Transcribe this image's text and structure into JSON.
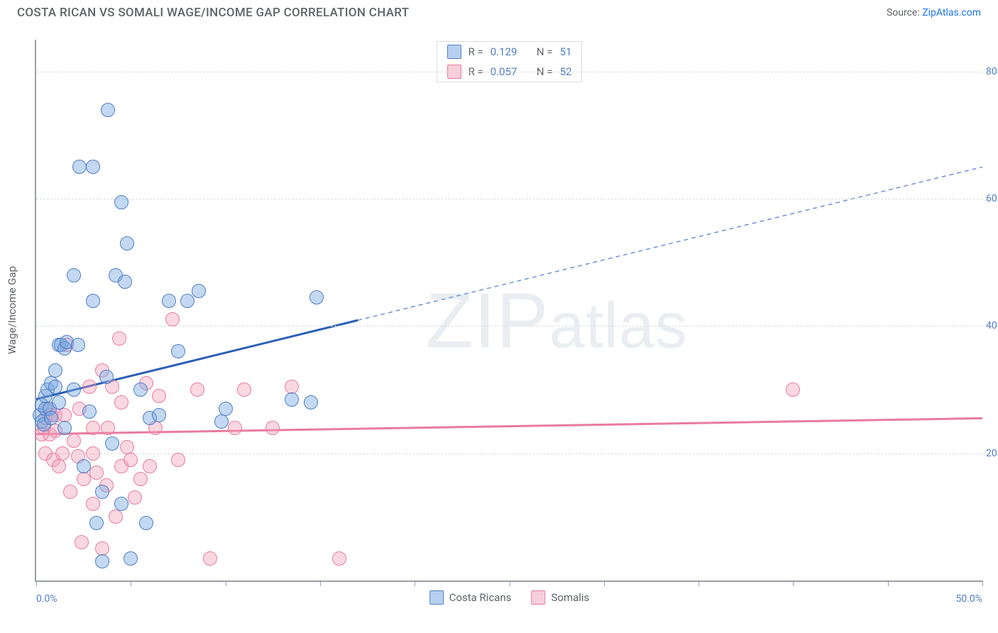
{
  "header": {
    "title": "COSTA RICAN VS SOMALI WAGE/INCOME GAP CORRELATION CHART",
    "source_prefix": "Source: ",
    "source_link": "ZipAtlas.com"
  },
  "watermark": {
    "zip": "ZIP",
    "atlas": "atlas"
  },
  "chart": {
    "type": "scatter",
    "y_axis_title": "Wage/Income Gap",
    "background_color": "#ffffff",
    "axis_color": "#9aa0a6",
    "grid_color": "#dadce0",
    "tick_label_color": "#4f7dc4",
    "text_color": "#5f6368",
    "xlim": [
      0,
      50
    ],
    "ylim": [
      0,
      85
    ],
    "x_ticks": [
      0,
      5,
      10,
      15,
      20,
      25,
      30,
      35,
      40,
      45,
      50
    ],
    "x_tick_labels": {
      "0": "0.0%",
      "50": "50.0%"
    },
    "y_ticks": [
      20,
      40,
      60,
      80
    ],
    "y_tick_labels": {
      "20": "20.0%",
      "40": "40.0%",
      "60": "60.0%",
      "80": "80.0%"
    },
    "marker_size": 18,
    "line_width": 3,
    "series": {
      "blue": {
        "label": "Costa Ricans",
        "fill": "rgba(123,170,227,0.45)",
        "stroke": "#4f7dc4",
        "R": "0.129",
        "N": "51",
        "trend": {
          "x1": 0,
          "y1": 28.5,
          "x2": 50,
          "y2": 65,
          "solid_until_x": 17
        },
        "points": [
          [
            0.2,
            26
          ],
          [
            0.3,
            27.5
          ],
          [
            0.3,
            25
          ],
          [
            0.4,
            24.5
          ],
          [
            0.5,
            27
          ],
          [
            0.5,
            29
          ],
          [
            0.6,
            30
          ],
          [
            0.7,
            27
          ],
          [
            0.8,
            31
          ],
          [
            0.8,
            25.5
          ],
          [
            1.0,
            30.5
          ],
          [
            1.0,
            33
          ],
          [
            1.2,
            28
          ],
          [
            1.2,
            37
          ],
          [
            1.3,
            37
          ],
          [
            1.5,
            36.5
          ],
          [
            1.5,
            24
          ],
          [
            1.6,
            37.5
          ],
          [
            2.0,
            30
          ],
          [
            2.0,
            48
          ],
          [
            2.2,
            37
          ],
          [
            2.3,
            65
          ],
          [
            2.5,
            18
          ],
          [
            2.8,
            26.5
          ],
          [
            3.0,
            44
          ],
          [
            3.0,
            65
          ],
          [
            3.2,
            9
          ],
          [
            3.5,
            14
          ],
          [
            3.5,
            3
          ],
          [
            3.7,
            32
          ],
          [
            3.8,
            74
          ],
          [
            4.0,
            21.5
          ],
          [
            4.2,
            48
          ],
          [
            4.5,
            59.5
          ],
          [
            4.5,
            12
          ],
          [
            4.7,
            47
          ],
          [
            4.8,
            53
          ],
          [
            5.0,
            3.5
          ],
          [
            5.5,
            30
          ],
          [
            5.8,
            9
          ],
          [
            6.0,
            25.5
          ],
          [
            6.5,
            26
          ],
          [
            7.0,
            44
          ],
          [
            7.5,
            36
          ],
          [
            8.0,
            44
          ],
          [
            8.6,
            45.5
          ],
          [
            9.8,
            25
          ],
          [
            10.0,
            27
          ],
          [
            13.5,
            28.5
          ],
          [
            14.5,
            28
          ],
          [
            14.8,
            44.5
          ]
        ]
      },
      "pink": {
        "label": "Somalis",
        "fill": "rgba(242,157,182,0.4)",
        "stroke": "#e87ba0",
        "R": "0.057",
        "N": "52",
        "trend": {
          "x1": 0,
          "y1": 23,
          "x2": 50,
          "y2": 25.5,
          "solid_until_x": 50
        },
        "points": [
          [
            0.3,
            23
          ],
          [
            0.4,
            24
          ],
          [
            0.5,
            25.5
          ],
          [
            0.5,
            20
          ],
          [
            0.6,
            27
          ],
          [
            0.7,
            23
          ],
          [
            0.8,
            26
          ],
          [
            0.9,
            19
          ],
          [
            1.0,
            23.5
          ],
          [
            1.0,
            26
          ],
          [
            1.2,
            18
          ],
          [
            1.4,
            20
          ],
          [
            1.5,
            26
          ],
          [
            1.6,
            37
          ],
          [
            1.8,
            14
          ],
          [
            2.0,
            22
          ],
          [
            2.2,
            19.5
          ],
          [
            2.3,
            27
          ],
          [
            2.4,
            6
          ],
          [
            2.5,
            16
          ],
          [
            2.8,
            30.5
          ],
          [
            3.0,
            12
          ],
          [
            3.0,
            20
          ],
          [
            3.0,
            24
          ],
          [
            3.2,
            17
          ],
          [
            3.5,
            5
          ],
          [
            3.5,
            33
          ],
          [
            3.7,
            15
          ],
          [
            3.8,
            24
          ],
          [
            4.0,
            30.5
          ],
          [
            4.2,
            10
          ],
          [
            4.4,
            38
          ],
          [
            4.5,
            18
          ],
          [
            4.5,
            28
          ],
          [
            4.8,
            21
          ],
          [
            5.0,
            19
          ],
          [
            5.2,
            13
          ],
          [
            5.5,
            16
          ],
          [
            5.8,
            31
          ],
          [
            6.0,
            18
          ],
          [
            6.3,
            24
          ],
          [
            6.5,
            29
          ],
          [
            7.2,
            41
          ],
          [
            7.5,
            19
          ],
          [
            8.5,
            30
          ],
          [
            9.2,
            3.5
          ],
          [
            10.5,
            24
          ],
          [
            11.0,
            30
          ],
          [
            12.5,
            24
          ],
          [
            13.5,
            30.5
          ],
          [
            16.0,
            3.5
          ],
          [
            40.0,
            30
          ]
        ]
      }
    },
    "legend_top": {
      "R_label": "R  =",
      "N_label": "N  ="
    },
    "legend_bottom": [
      "blue",
      "pink"
    ]
  }
}
